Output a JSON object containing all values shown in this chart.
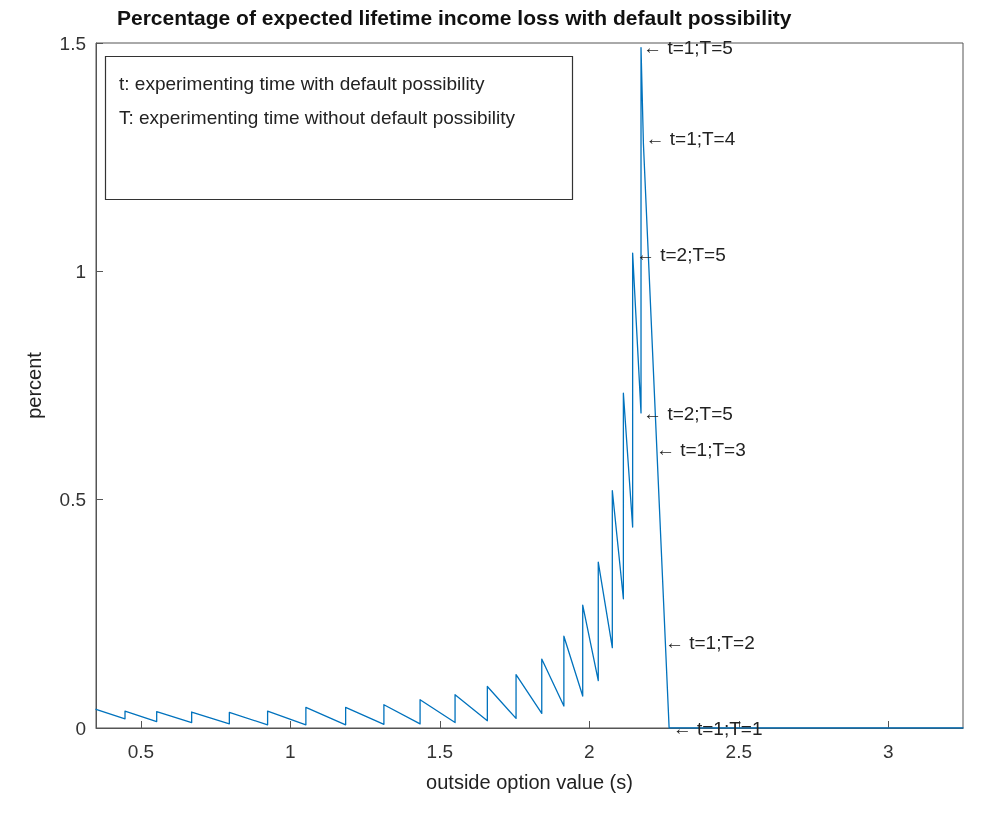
{
  "chart_data": {
    "type": "line",
    "title": "Percentage of expected lifetime income loss with default possibility",
    "xlabel": "outside option value (s)",
    "ylabel": "percent",
    "x": [
      0.35,
      0.447,
      0.447,
      0.553,
      0.553,
      0.67,
      0.67,
      0.796,
      0.796,
      0.924,
      0.924,
      1.052,
      1.052,
      1.185,
      1.185,
      1.313,
      1.313,
      1.434,
      1.434,
      1.551,
      1.551,
      1.659,
      1.659,
      1.755,
      1.755,
      1.841,
      1.841,
      1.915,
      1.915,
      1.978,
      1.978,
      2.03,
      2.03,
      2.077,
      2.077,
      2.114,
      2.114,
      2.145,
      2.145,
      2.173,
      2.173,
      2.181,
      2.267,
      3.25
    ],
    "series": [
      {
        "color": "#0072bd",
        "values": [
          0.041,
          0.02,
          0.037,
          0.014,
          0.036,
          0.012,
          0.035,
          0.009,
          0.034,
          0.007,
          0.037,
          0.007,
          0.045,
          0.007,
          0.045,
          0.008,
          0.051,
          0.009,
          0.062,
          0.012,
          0.073,
          0.016,
          0.091,
          0.021,
          0.117,
          0.032,
          0.151,
          0.048,
          0.201,
          0.07,
          0.269,
          0.104,
          0.363,
          0.176,
          0.52,
          0.283,
          0.733,
          0.44,
          1.04,
          0.69,
          1.49,
          1.28,
          0,
          0
        ]
      }
    ],
    "xlim": [
      0.35,
      3.25
    ],
    "xticks": [
      0.5,
      1,
      1.5,
      2,
      2.5,
      3
    ],
    "ylim": [
      0,
      1.5
    ],
    "yticks": [
      0,
      0.5,
      1,
      1.5
    ],
    "grid": false,
    "marker": "none",
    "line_style": "solid",
    "annotations": [
      "t: experimenting time with default possibility",
      "T: experimenting time without default possibility",
      {
        "text": "← t=1;T=5",
        "x": 2.18,
        "y": 1.49
      },
      {
        "text": "← t=1;T=4",
        "x": 2.188,
        "y": 1.29
      },
      {
        "text": "← t=2;T=5",
        "x": 2.156,
        "y": 1.036
      },
      {
        "text": "← t=2;T=5",
        "x": 2.18,
        "y": 0.689
      },
      {
        "text": "← t=1;T=3",
        "x": 2.223,
        "y": 0.61
      },
      {
        "text": "← t=1;T=2",
        "x": 2.253,
        "y": 0.188
      },
      {
        "text": "← t=1;T=1",
        "x": 2.279,
        "y": 0
      }
    ]
  }
}
